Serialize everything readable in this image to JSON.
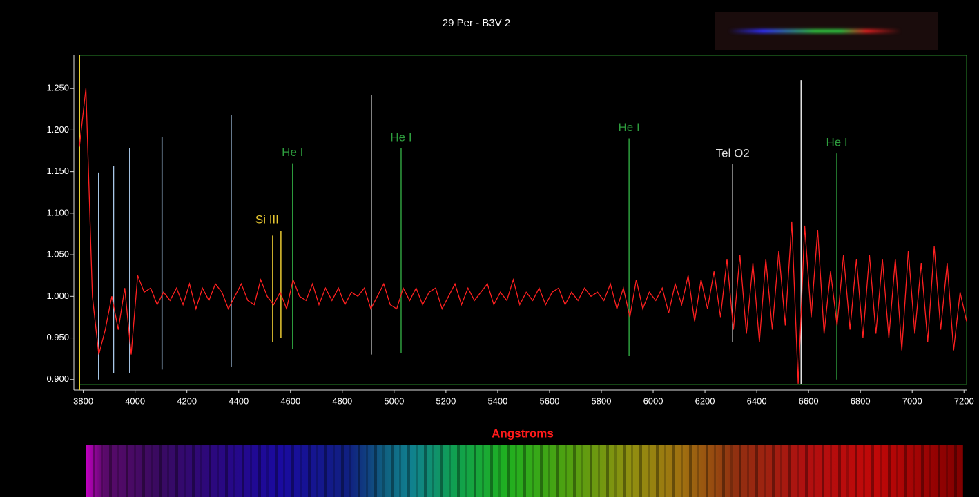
{
  "chart_data": {
    "type": "line",
    "title": "29 Per - B3V 2",
    "xlabel": "Angstroms",
    "color": "#ff2020",
    "x": [
      3785,
      3810,
      3835,
      3860,
      3885,
      3910,
      3935,
      3960,
      3985,
      4010,
      4035,
      4060,
      4085,
      4110,
      4135,
      4160,
      4185,
      4210,
      4235,
      4260,
      4285,
      4310,
      4335,
      4360,
      4385,
      4410,
      4435,
      4460,
      4485,
      4510,
      4535,
      4560,
      4585,
      4610,
      4635,
      4660,
      4685,
      4710,
      4735,
      4760,
      4785,
      4810,
      4835,
      4860,
      4885,
      4910,
      4935,
      4960,
      4985,
      5010,
      5035,
      5060,
      5085,
      5110,
      5135,
      5160,
      5185,
      5210,
      5235,
      5260,
      5285,
      5310,
      5335,
      5360,
      5385,
      5410,
      5435,
      5460,
      5485,
      5510,
      5535,
      5560,
      5585,
      5610,
      5635,
      5660,
      5685,
      5710,
      5735,
      5760,
      5785,
      5810,
      5835,
      5860,
      5885,
      5910,
      5935,
      5960,
      5985,
      6010,
      6035,
      6060,
      6085,
      6110,
      6135,
      6160,
      6185,
      6210,
      6235,
      6260,
      6285,
      6310,
      6335,
      6360,
      6385,
      6410,
      6435,
      6460,
      6485,
      6510,
      6535,
      6560,
      6585,
      6610,
      6635,
      6660,
      6685,
      6710,
      6735,
      6760,
      6785,
      6810,
      6835,
      6860,
      6885,
      6910,
      6935,
      6960,
      6985,
      7010,
      7035,
      7060,
      7085,
      7110,
      7135,
      7160,
      7185,
      7210
    ],
    "values": [
      1.18,
      1.25,
      1.0,
      0.93,
      0.96,
      1.0,
      0.96,
      1.01,
      0.93,
      1.025,
      1.005,
      1.01,
      0.99,
      1.005,
      0.995,
      1.01,
      0.99,
      1.015,
      0.985,
      1.01,
      0.995,
      1.015,
      1.005,
      0.985,
      1.0,
      1.015,
      0.995,
      0.99,
      1.02,
      1.0,
      0.99,
      1.005,
      0.985,
      1.02,
      1.0,
      0.995,
      1.015,
      0.99,
      1.01,
      0.995,
      1.01,
      0.99,
      1.005,
      1.0,
      1.01,
      0.985,
      1.0,
      1.015,
      0.99,
      0.985,
      1.01,
      0.995,
      1.01,
      0.99,
      1.005,
      1.01,
      0.985,
      1.0,
      1.015,
      0.99,
      1.01,
      0.995,
      1.005,
      1.015,
      0.99,
      1.005,
      0.995,
      1.02,
      0.99,
      1.005,
      0.995,
      1.01,
      0.99,
      1.005,
      1.01,
      0.99,
      1.005,
      0.995,
      1.01,
      1.0,
      1.005,
      0.995,
      1.015,
      0.985,
      1.01,
      0.975,
      1.02,
      0.985,
      1.005,
      0.995,
      1.01,
      0.98,
      1.015,
      0.99,
      1.025,
      0.97,
      1.02,
      0.985,
      1.03,
      0.975,
      1.045,
      0.96,
      1.05,
      0.955,
      1.04,
      0.945,
      1.045,
      0.96,
      1.055,
      0.965,
      1.09,
      0.895,
      1.085,
      0.975,
      1.08,
      0.955,
      1.03,
      0.965,
      1.05,
      0.96,
      1.045,
      0.95,
      1.05,
      0.955,
      1.045,
      0.95,
      1.045,
      0.935,
      1.055,
      0.955,
      1.04,
      0.945,
      1.06,
      0.96,
      1.04,
      0.935,
      1.005,
      0.97
    ],
    "xlim": [
      3785,
      7210
    ],
    "ylim": [
      0.894,
      1.29
    ],
    "xticks": [
      3800,
      4000,
      4200,
      4400,
      4600,
      4800,
      5000,
      5200,
      5400,
      5600,
      5800,
      6000,
      6200,
      6400,
      6600,
      6800,
      7000,
      7200
    ],
    "yticks": [
      {
        "value": 0.9,
        "label": "0.900"
      },
      {
        "value": 0.95,
        "label": "0.950"
      },
      {
        "value": 1.0,
        "label": "1.000"
      },
      {
        "value": 1.05,
        "label": "1.050"
      },
      {
        "value": 1.1,
        "label": "1.100"
      },
      {
        "value": 1.15,
        "label": "1.150"
      },
      {
        "value": 1.2,
        "label": "1.200"
      },
      {
        "value": 1.25,
        "label": "1.250"
      }
    ],
    "line_markers": [
      {
        "x": 3859,
        "y1": 0.9,
        "y2": 1.149,
        "color": "#a8c8e8"
      },
      {
        "x": 3917,
        "y1": 0.908,
        "y2": 1.157,
        "color": "#a8c8e8"
      },
      {
        "x": 3979,
        "y1": 0.908,
        "y2": 1.178,
        "color": "#a8c8e8"
      },
      {
        "x": 4104,
        "y1": 0.912,
        "y2": 1.192,
        "color": "#a8c8e8"
      },
      {
        "x": 4371,
        "y1": 0.915,
        "y2": 1.218,
        "color": "#a8c8e8"
      },
      {
        "x": 4531,
        "y1": 0.945,
        "y2": 1.073,
        "color": "#e8c832"
      },
      {
        "x": 4563,
        "y1": 0.95,
        "y2": 1.079,
        "color": "#e8c832",
        "label": "Si III"
      },
      {
        "x": 4608,
        "y1": 0.937,
        "y2": 1.16,
        "color": "#2e9e3e",
        "label": "He I"
      },
      {
        "x": 4912,
        "y1": 0.93,
        "y2": 1.242,
        "color": "#e0e0e0"
      },
      {
        "x": 5027,
        "y1": 0.932,
        "y2": 1.178,
        "color": "#2e9e3e",
        "label": "He I"
      },
      {
        "x": 5907,
        "y1": 0.928,
        "y2": 1.19,
        "color": "#2e9e3e",
        "label": "He I"
      },
      {
        "x": 6307,
        "y1": 0.945,
        "y2": 1.159,
        "color": "#e0e0e0",
        "label": "Tel O2"
      },
      {
        "x": 6571,
        "y1": 0.894,
        "y2": 1.26,
        "color": "#e0e0e0"
      },
      {
        "x": 6709,
        "y1": 0.9,
        "y2": 1.172,
        "color": "#2e9e3e",
        "label": "He I"
      }
    ]
  }
}
